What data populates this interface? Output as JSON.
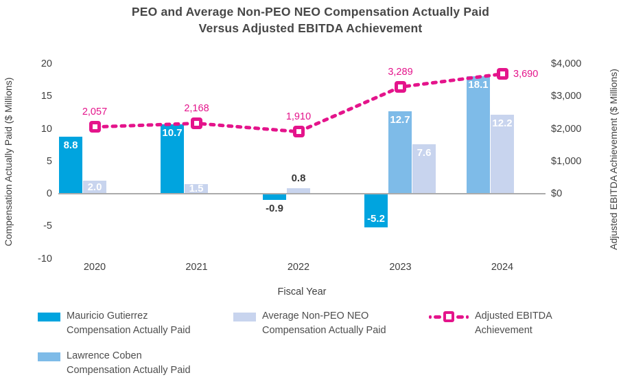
{
  "title": {
    "line1": "PEO and Average Non-PEO NEO Compensation Actually Paid",
    "line2": "Versus Adjusted EBITDA Achievement"
  },
  "colors": {
    "peo_bar": "#00A4DF",
    "coben_bar": "#7EBBE8",
    "avg_bar": "#C8D4EE",
    "ebitda_line": "#E4148B",
    "axis_line": "#ABABAB",
    "text_dark": "#3F3F3F"
  },
  "chart_data": {
    "type": "combo-bar-line",
    "title": "PEO and Average Non-PEO NEO Compensation Actually Paid Versus Adjusted EBITDA Achievement",
    "xlabel": "Fiscal Year",
    "categories": [
      "2020",
      "2021",
      "2022",
      "2023",
      "2024"
    ],
    "left_axis": {
      "label": "Compensation Actually Paid ($ Millions)",
      "range": [
        -10,
        20
      ],
      "ticks": [
        {
          "label": "20",
          "value": 20
        },
        {
          "label": "15",
          "value": 15
        },
        {
          "label": "10",
          "value": 10
        },
        {
          "label": "5",
          "value": 5
        },
        {
          "label": "0",
          "value": 0
        },
        {
          "label": "-5",
          "value": -5
        },
        {
          "label": "-10",
          "value": -10
        }
      ]
    },
    "right_axis": {
      "label": "Adjusted EBITDA Achievement ($ Millions)",
      "range": [
        0,
        4000
      ],
      "ticks": [
        {
          "label": "$4,000",
          "value": 4000
        },
        {
          "label": "$3,000",
          "value": 3000
        },
        {
          "label": "$2,000",
          "value": 2000
        },
        {
          "label": "$1,000",
          "value": 1000
        },
        {
          "label": "$0",
          "value": 0
        }
      ]
    },
    "bar_series": [
      {
        "id": "mauricio",
        "name": "Mauricio Gutierrez Compensation Actually Paid",
        "color_key": "peo_bar"
      },
      {
        "id": "lawrence",
        "name": "Lawrence Coben Compensation Actually Paid",
        "color_key": "coben_bar"
      },
      {
        "id": "average",
        "name": "Average Non-PEO NEO Compensation Actually Paid",
        "color_key": "avg_bar"
      }
    ],
    "line_series": {
      "id": "ebitda",
      "name": "Adjusted EBITDA Achievement",
      "color_key": "ebitda_line"
    },
    "years": [
      {
        "year": "2020",
        "bars": [
          {
            "series": "mauricio",
            "value": 8.8,
            "label": "8.8",
            "label_style": "inside"
          },
          {
            "series": "average",
            "value": 2.0,
            "label": "2.0",
            "label_style": "inside"
          }
        ],
        "ebitda": {
          "value": 2057,
          "label": "2,057",
          "label_placement": "above"
        }
      },
      {
        "year": "2021",
        "bars": [
          {
            "series": "mauricio",
            "value": 10.7,
            "label": "10.7",
            "label_style": "inside"
          },
          {
            "series": "average",
            "value": 1.5,
            "label": "1.5",
            "label_style": "inside"
          }
        ],
        "ebitda": {
          "value": 2168,
          "label": "2,168",
          "label_placement": "above"
        }
      },
      {
        "year": "2022",
        "bars": [
          {
            "series": "mauricio",
            "value": -0.9,
            "label": "-0.9",
            "label_style": "outside"
          },
          {
            "series": "average",
            "value": 0.8,
            "label": "0.8",
            "label_style": "outside"
          }
        ],
        "ebitda": {
          "value": 1910,
          "label": "1,910",
          "label_placement": "above"
        }
      },
      {
        "year": "2023",
        "bars": [
          {
            "series": "mauricio",
            "value": -5.2,
            "label": "-5.2",
            "label_style": "inside"
          },
          {
            "series": "lawrence",
            "value": 12.7,
            "label": "12.7",
            "label_style": "inside"
          },
          {
            "series": "average",
            "value": 7.6,
            "label": "7.6",
            "label_style": "inside"
          }
        ],
        "ebitda": {
          "value": 3289,
          "label": "3,289",
          "label_placement": "above"
        }
      },
      {
        "year": "2024",
        "bars": [
          {
            "series": "lawrence",
            "value": 18.1,
            "label": "18.1",
            "label_style": "inside"
          },
          {
            "series": "average",
            "value": 12.2,
            "label": "12.2",
            "label_style": "inside"
          }
        ],
        "ebitda": {
          "value": 3690,
          "label": "3,690",
          "label_placement": "right"
        }
      }
    ]
  },
  "legend": {
    "items": [
      {
        "swatch": "bar",
        "color_key": "peo_bar",
        "line1": "Mauricio Gutierrez",
        "line2": "Compensation Actually Paid"
      },
      {
        "swatch": "bar",
        "color_key": "coben_bar",
        "line1": "Lawrence Coben",
        "line2": "Compensation Actually Paid"
      },
      {
        "swatch": "bar",
        "color_key": "avg_bar",
        "line1": "Average Non-PEO NEO",
        "line2": "Compensation Actually Paid"
      },
      {
        "swatch": "line-marker",
        "color_key": "ebitda_line",
        "line1": "Adjusted EBITDA",
        "line2": "Achievement"
      }
    ]
  }
}
